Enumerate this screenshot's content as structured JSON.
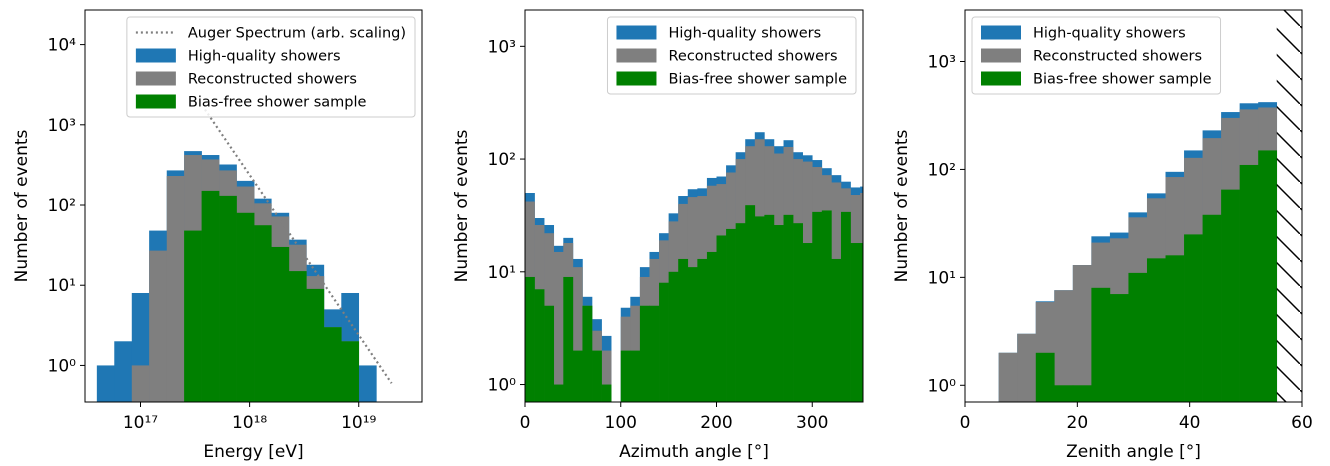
{
  "chart_data": [
    {
      "type": "histogram",
      "xlabel": "Energy [eV]",
      "ylabel": "Number of events",
      "xlog": true,
      "ylog": true,
      "xlim": [
        3.1e+16,
        3.8e+19
      ],
      "ylim": [
        0.35,
        27000
      ],
      "xticks": [
        {
          "value": 1e+17,
          "label": "10¹⁷"
        },
        {
          "value": 1e+18,
          "label": "10¹⁸"
        },
        {
          "value": 1e+19,
          "label": "10¹⁹"
        }
      ],
      "yticks": [
        {
          "value": 1,
          "label": "10⁰"
        },
        {
          "value": 10,
          "label": "10¹"
        },
        {
          "value": 100,
          "label": "10²"
        },
        {
          "value": 1000,
          "label": "10³"
        },
        {
          "value": 10000,
          "label": "10⁴"
        }
      ],
      "legend": "upper right",
      "bins": [
        3.98e+16,
        5.75e+16,
        8.32e+16,
        1.2e+17,
        1.74e+17,
        2.51e+17,
        3.63e+17,
        5.25e+17,
        7.59e+17,
        1.1e+18,
        1.58e+18,
        2.29e+18,
        3.31e+18,
        4.79e+18,
        6.92e+18,
        1e+19,
        1.45e+19
      ],
      "lines": [
        {
          "name": "Auger Spectrum (arb. scaling)",
          "color": "#7f7f7f",
          "x": [
            3.9e+17,
            2e+19
          ],
          "y": [
            1550,
            0.6
          ]
        }
      ],
      "series": [
        {
          "name": "High-quality showers",
          "color": "#1f77b4",
          "values": [
            1,
            2,
            8,
            48,
            270,
            470,
            420,
            320,
            200,
            120,
            80,
            37,
            18,
            5,
            8,
            1
          ]
        },
        {
          "name": "Reconstructed showers",
          "color": "#7f7f7f",
          "values": [
            0,
            0,
            1,
            27,
            230,
            420,
            370,
            270,
            170,
            105,
            72,
            32,
            13,
            3,
            2,
            0
          ]
        },
        {
          "name": "Bias-free shower sample",
          "color": "#008000",
          "values": [
            0,
            0,
            0,
            0,
            0,
            48,
            150,
            130,
            80,
            56,
            30,
            15,
            9,
            3,
            2,
            0
          ]
        }
      ]
    },
    {
      "type": "histogram",
      "xlabel": "Azimuth angle [°]",
      "ylabel": "Number of events",
      "xlog": false,
      "ylog": true,
      "xlim": [
        0,
        353
      ],
      "ylim": [
        0.7,
        2100
      ],
      "xticks": [
        0,
        100,
        200,
        300
      ],
      "yticks": [
        {
          "value": 1,
          "label": "10⁰"
        },
        {
          "value": 10,
          "label": "10¹"
        },
        {
          "value": 100,
          "label": "10²"
        },
        {
          "value": 1000,
          "label": "10³"
        }
      ],
      "legend": "upper right",
      "bins": [
        0,
        10,
        20,
        30,
        40,
        50,
        60,
        70,
        80,
        90,
        100,
        110,
        120,
        130,
        140,
        150,
        160,
        170,
        180,
        190,
        200,
        210,
        220,
        230,
        240,
        250,
        260,
        270,
        280,
        290,
        300,
        310,
        320,
        330,
        340,
        350,
        360
      ],
      "series": [
        {
          "name": "High-quality showers",
          "color": "#1f77b4",
          "values": [
            50,
            30,
            26,
            17,
            20,
            13,
            6,
            3.8,
            2.7,
            0,
            4.8,
            6,
            11,
            15,
            22,
            33,
            47,
            54,
            55,
            68,
            70,
            88,
            115,
            150,
            173,
            150,
            130,
            147,
            115,
            108,
            98,
            83,
            72,
            63,
            56,
            57
          ]
        },
        {
          "name": "Reconstructed showers",
          "color": "#7f7f7f",
          "values": [
            42,
            26,
            22,
            15,
            18,
            11,
            5,
            3,
            2,
            0,
            4,
            5,
            9,
            13,
            19,
            28,
            40,
            46,
            47,
            58,
            60,
            76,
            100,
            130,
            150,
            130,
            112,
            128,
            100,
            95,
            85,
            72,
            62,
            55,
            48,
            50
          ]
        },
        {
          "name": "Bias-free shower sample",
          "color": "#008000",
          "values": [
            9,
            7,
            5,
            1,
            9,
            2,
            5,
            2,
            1,
            0,
            2,
            2,
            5,
            5,
            8,
            10,
            13,
            11,
            13,
            15,
            21,
            24,
            27,
            39,
            31,
            32,
            26,
            32,
            27,
            18,
            34,
            35,
            13,
            34,
            18,
            18
          ]
        }
      ]
    },
    {
      "type": "histogram",
      "xlabel": "Zenith angle [°]",
      "ylabel": "Number of events",
      "xlog": false,
      "ylog": true,
      "xlim": [
        0,
        60
      ],
      "ylim": [
        0.7,
        3000
      ],
      "xticks": [
        0,
        20,
        40,
        60
      ],
      "yticks": [
        {
          "value": 1,
          "label": "10⁰"
        },
        {
          "value": 10,
          "label": "10¹"
        },
        {
          "value": 100,
          "label": "10²"
        },
        {
          "value": 1000,
          "label": "10³"
        }
      ],
      "legend": "upper left",
      "hatch_from": 55.5,
      "bins": [
        6,
        9.3,
        12.6,
        15.9,
        19.2,
        22.5,
        25.8,
        29.1,
        32.4,
        35.7,
        39,
        42.3,
        45.6,
        48.9,
        52.2,
        55.5
      ],
      "series": [
        {
          "name": "High-quality showers",
          "color": "#1f77b4",
          "values": [
            2,
            3,
            6,
            7.6,
            13,
            24,
            26,
            40,
            60,
            95,
            150,
            230,
            340,
            410,
            420
          ]
        },
        {
          "name": "Reconstructed showers",
          "color": "#7f7f7f",
          "values": [
            2,
            3,
            5.9,
            7.6,
            13,
            21,
            23,
            36,
            54,
            85,
            128,
            195,
            300,
            360,
            375
          ]
        },
        {
          "name": "Bias-free shower sample",
          "color": "#008000",
          "values": [
            0,
            0,
            2,
            1,
            1,
            8,
            7,
            11,
            15,
            16,
            25,
            38,
            65,
            110,
            150
          ]
        }
      ]
    }
  ]
}
